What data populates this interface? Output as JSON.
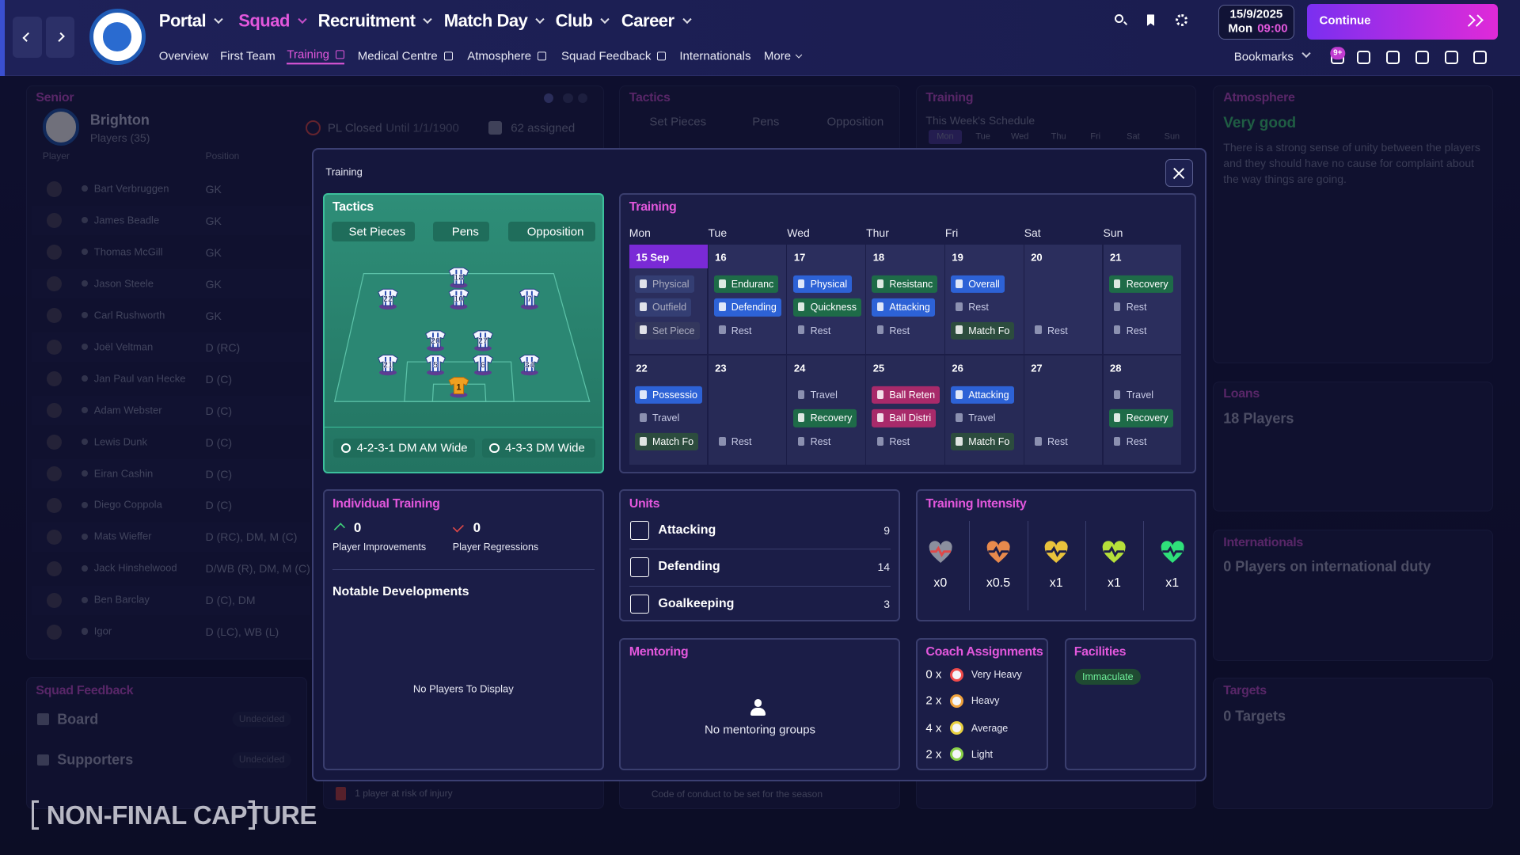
{
  "top_bar": {
    "nav": [
      "Portal",
      "Squad",
      "Recruitment",
      "Match Day",
      "Club",
      "Career"
    ],
    "active_nav": 1,
    "subnav": [
      "Overview",
      "First Team",
      "Training",
      "Medical Centre",
      "Atmosphere",
      "Squad Feedback",
      "Internationals",
      "More"
    ],
    "active_subnav": 2,
    "date": "15/9/2025",
    "day": "Mon",
    "time": "09:00",
    "continue": "Continue",
    "bookmarks": "Bookmarks",
    "notification_badge": "9+"
  },
  "background": {
    "senior": {
      "title": "Senior",
      "club": "Brighton",
      "players_count": "Players (35)",
      "status": "PL Closed",
      "status_until": "Until 1/1/1900",
      "assigned": "62 assigned",
      "columns": [
        "Player",
        "Position"
      ],
      "players": [
        [
          "Bart Verbruggen",
          "GK"
        ],
        [
          "James Beadle",
          "GK"
        ],
        [
          "Thomas McGill",
          "GK"
        ],
        [
          "Jason Steele",
          "GK"
        ],
        [
          "Carl Rushworth",
          "GK"
        ],
        [
          "Joël Veltman",
          "D (RC)"
        ],
        [
          "Jan Paul van Hecke",
          "D (C)"
        ],
        [
          "Adam Webster",
          "D (C)"
        ],
        [
          "Lewis Dunk",
          "D (C)"
        ],
        [
          "Eiran Cashin",
          "D (C)"
        ],
        [
          "Diego Coppola",
          "D (C)"
        ],
        [
          "Mats Wieffer",
          "D (RC), DM, M (C)"
        ],
        [
          "Jack Hinshelwood",
          "D/WB (R), DM, M (C)"
        ],
        [
          "Ben Barclay",
          "D (C), DM"
        ],
        [
          "Igor",
          "D (LC), WB (L)"
        ]
      ]
    },
    "squad_feedback": {
      "title": "Squad Feedback",
      "rows": [
        [
          "Board",
          "Undecided"
        ],
        [
          "Supporters",
          "Undecided"
        ]
      ]
    },
    "injury_note": "1 player at risk of injury",
    "tactics": {
      "title": "Tactics",
      "tabs": [
        "Set Pieces",
        "Pens",
        "Opposition"
      ],
      "footer": "Code of conduct to be set for the season"
    },
    "training": {
      "title": "Training",
      "subtitle": "This Week's Schedule",
      "days": [
        "Mon",
        "Tue",
        "Wed",
        "Thu",
        "Fri",
        "Sat",
        "Sun"
      ]
    },
    "atmosphere": {
      "title": "Atmosphere",
      "rating": "Very good",
      "text": "There is a strong sense of unity between the players and they should have no cause for complaint about the way things are going."
    },
    "loans": {
      "title": "Loans",
      "value": "18 Players"
    },
    "internationals": {
      "title": "Internationals",
      "value": "0 Players on international duty"
    },
    "targets": {
      "title": "Targets",
      "value": "0 Targets"
    }
  },
  "watermark": "NON-FINAL CAPTURE",
  "modal": {
    "title": "Training",
    "tactics": {
      "title": "Tactics",
      "buttons": [
        "Set Pieces",
        "Pens",
        "Opposition"
      ],
      "players": [
        "22",
        "18",
        "10",
        "7",
        "20",
        "27",
        "21",
        "5",
        "6",
        "34",
        "1"
      ],
      "formations": [
        "4-2-3-1 DM AM Wide",
        "4-3-3 DM Wide"
      ]
    },
    "training": {
      "title": "Training",
      "days": [
        "Mon",
        "Tue",
        "Wed",
        "Thur",
        "Fri",
        "Sat",
        "Sun"
      ],
      "weeks": [
        [
          {
            "date": "15 Sep",
            "sessions": [
              {
                "name": "Physical",
                "color": "#3a4a82"
              },
              {
                "name": "Outfield",
                "color": "#3a4a82"
              },
              {
                "name": "Set Piece",
                "color": "#393e5e"
              }
            ]
          },
          {
            "date": "16",
            "sessions": [
              {
                "name": "Enduranc",
                "color": "#1e6b48"
              },
              {
                "name": "Defending",
                "color": "#2d62d6"
              },
              {
                "name": "Rest"
              }
            ]
          },
          {
            "date": "17",
            "sessions": [
              {
                "name": "Physical",
                "color": "#2d62d6"
              },
              {
                "name": "Quickness",
                "color": "#1e6b48"
              },
              {
                "name": "Rest"
              }
            ]
          },
          {
            "date": "18",
            "sessions": [
              {
                "name": "Resistanc",
                "color": "#1e6b48"
              },
              {
                "name": "Attacking",
                "color": "#2d62d6"
              },
              {
                "name": "Rest"
              }
            ]
          },
          {
            "date": "19",
            "sessions": [
              {
                "name": "Overall",
                "color": "#2d62d6"
              },
              {
                "name": "Rest"
              },
              {
                "name": "Match Fo",
                "color": "#2c4c3e"
              }
            ]
          },
          {
            "date": "20",
            "sessions": [
              {
                "name": "Rest"
              }
            ]
          },
          {
            "date": "21",
            "sessions": [
              {
                "name": "Recovery",
                "color": "#1e6b48"
              },
              {
                "name": "Rest"
              },
              {
                "name": "Rest"
              }
            ]
          }
        ],
        [
          {
            "date": "22",
            "sessions": [
              {
                "name": "Possessio",
                "color": "#2d62d6"
              },
              {
                "name": "Travel"
              },
              {
                "name": "Match Fo",
                "color": "#2c4c3e"
              }
            ]
          },
          {
            "date": "23",
            "sessions": [
              {
                "name": "Rest"
              }
            ]
          },
          {
            "date": "24",
            "sessions": [
              {
                "name": "Travel"
              },
              {
                "name": "Recovery",
                "color": "#1e6b48"
              },
              {
                "name": "Rest"
              }
            ]
          },
          {
            "date": "25",
            "sessions": [
              {
                "name": "Ball Reten",
                "color": "#a82a6a"
              },
              {
                "name": "Ball Distri",
                "color": "#a82a6a"
              },
              {
                "name": "Rest"
              }
            ]
          },
          {
            "date": "26",
            "sessions": [
              {
                "name": "Attacking",
                "color": "#2d62d6"
              },
              {
                "name": "Travel"
              },
              {
                "name": "Match Fo",
                "color": "#2c4c3e"
              }
            ]
          },
          {
            "date": "27",
            "sessions": [
              {
                "name": "Rest"
              }
            ]
          },
          {
            "date": "28",
            "sessions": [
              {
                "name": "Travel"
              },
              {
                "name": "Recovery",
                "color": "#1e6b48"
              },
              {
                "name": "Rest"
              }
            ]
          }
        ]
      ]
    },
    "individual": {
      "title": "Individual Training",
      "improvements": 0,
      "improvements_label": "Player Improvements",
      "regressions": 0,
      "regressions_label": "Player Regressions",
      "notable": "Notable Developments",
      "empty": "No Players To Display"
    },
    "units": {
      "title": "Units",
      "rows": [
        {
          "name": "Attacking",
          "value": 9
        },
        {
          "name": "Defending",
          "value": 14
        },
        {
          "name": "Goalkeeping",
          "value": 3
        }
      ]
    },
    "intensity": {
      "title": "Training Intensity",
      "items": [
        {
          "label": "x0",
          "color": "#8b8f9e"
        },
        {
          "label": "x0.5",
          "color": "#e88a4c"
        },
        {
          "label": "x1",
          "color": "#e8c23c"
        },
        {
          "label": "x1",
          "color": "#b6e03a"
        },
        {
          "label": "x1",
          "color": "#2fe07a"
        }
      ]
    },
    "mentoring": {
      "title": "Mentoring",
      "empty": "No mentoring groups"
    },
    "coach": {
      "title": "Coach Assignments",
      "rows": [
        {
          "count": "0 x",
          "level": "Very Heavy",
          "color": "#ef4a4a"
        },
        {
          "count": "2 x",
          "level": "Heavy",
          "color": "#f0a23c"
        },
        {
          "count": "4 x",
          "level": "Average",
          "color": "#e8d040"
        },
        {
          "count": "2 x",
          "level": "Light",
          "color": "#8ad048"
        }
      ]
    },
    "facilities": {
      "title": "Facilities",
      "rating": "Immaculate"
    }
  }
}
